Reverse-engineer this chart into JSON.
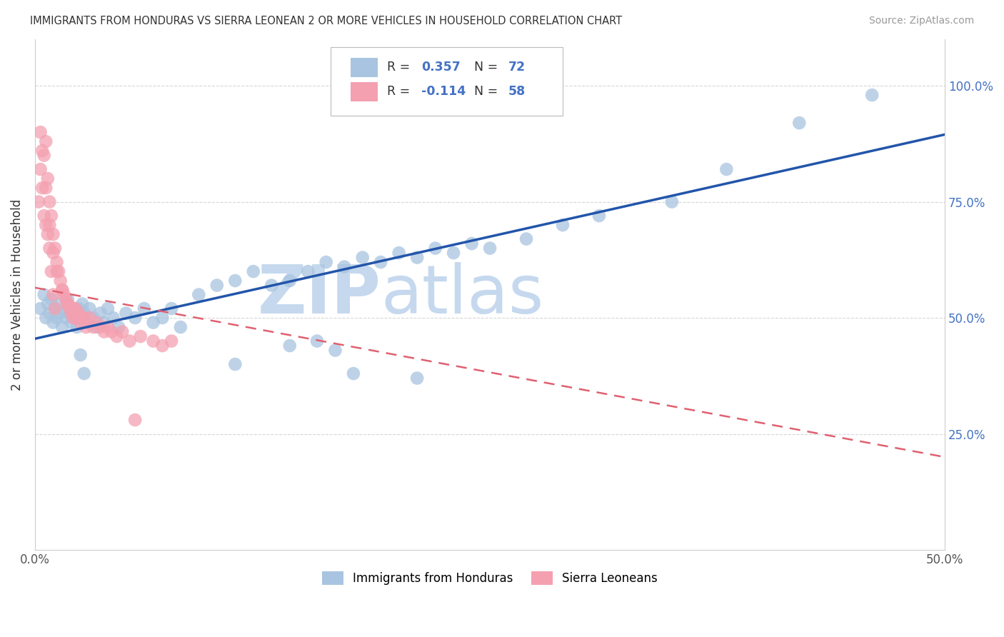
{
  "title": "IMMIGRANTS FROM HONDURAS VS SIERRA LEONEAN 2 OR MORE VEHICLES IN HOUSEHOLD CORRELATION CHART",
  "source": "Source: ZipAtlas.com",
  "ylabel": "2 or more Vehicles in Household",
  "legend_label1": "Immigrants from Honduras",
  "legend_label2": "Sierra Leoneans",
  "r1": 0.357,
  "n1": 72,
  "r2": -0.114,
  "n2": 58,
  "color1": "#a8c4e0",
  "color2": "#f4a0b0",
  "trendline1_color": "#2255aa",
  "trendline2_color": "#e06070",
  "xlim": [
    0.0,
    0.5
  ],
  "ylim": [
    0.0,
    1.1
  ],
  "ytick_labels_right": [
    "25.0%",
    "50.0%",
    "75.0%",
    "100.0%"
  ],
  "yticks_right": [
    0.25,
    0.5,
    0.75,
    1.0
  ],
  "watermark": "ZIPatlas",
  "watermark_color": "#c5d8ee",
  "background_color": "#ffffff",
  "blue_x": [
    0.003,
    0.005,
    0.006,
    0.007,
    0.008,
    0.009,
    0.01,
    0.011,
    0.012,
    0.013,
    0.014,
    0.015,
    0.016,
    0.017,
    0.018,
    0.019,
    0.02,
    0.021,
    0.022,
    0.023,
    0.024,
    0.025,
    0.026,
    0.027,
    0.028,
    0.03,
    0.032,
    0.034,
    0.036,
    0.038,
    0.04,
    0.043,
    0.046,
    0.05,
    0.055,
    0.06,
    0.065,
    0.07,
    0.075,
    0.08,
    0.09,
    0.1,
    0.11,
    0.12,
    0.13,
    0.14,
    0.15,
    0.16,
    0.17,
    0.18,
    0.19,
    0.2,
    0.21,
    0.22,
    0.23,
    0.24,
    0.25,
    0.27,
    0.29,
    0.31,
    0.025,
    0.027,
    0.11,
    0.14,
    0.155,
    0.165,
    0.175,
    0.21,
    0.35,
    0.38,
    0.42,
    0.46
  ],
  "blue_y": [
    0.52,
    0.55,
    0.5,
    0.53,
    0.51,
    0.54,
    0.49,
    0.52,
    0.5,
    0.53,
    0.51,
    0.48,
    0.52,
    0.5,
    0.54,
    0.51,
    0.49,
    0.52,
    0.5,
    0.48,
    0.52,
    0.5,
    0.53,
    0.51,
    0.49,
    0.52,
    0.5,
    0.48,
    0.51,
    0.49,
    0.52,
    0.5,
    0.48,
    0.51,
    0.5,
    0.52,
    0.49,
    0.5,
    0.52,
    0.48,
    0.55,
    0.57,
    0.58,
    0.6,
    0.57,
    0.58,
    0.6,
    0.62,
    0.61,
    0.63,
    0.62,
    0.64,
    0.63,
    0.65,
    0.64,
    0.66,
    0.65,
    0.67,
    0.7,
    0.72,
    0.42,
    0.38,
    0.4,
    0.44,
    0.45,
    0.43,
    0.38,
    0.37,
    0.75,
    0.82,
    0.92,
    0.98
  ],
  "pink_x": [
    0.002,
    0.003,
    0.004,
    0.005,
    0.005,
    0.006,
    0.006,
    0.007,
    0.007,
    0.008,
    0.008,
    0.009,
    0.009,
    0.01,
    0.01,
    0.011,
    0.011,
    0.012,
    0.013,
    0.014,
    0.015,
    0.016,
    0.017,
    0.018,
    0.019,
    0.02,
    0.021,
    0.022,
    0.023,
    0.024,
    0.025,
    0.026,
    0.028,
    0.03,
    0.032,
    0.034,
    0.036,
    0.038,
    0.04,
    0.042,
    0.045,
    0.048,
    0.052,
    0.058,
    0.065,
    0.07,
    0.075,
    0.003,
    0.004,
    0.006,
    0.008,
    0.01,
    0.012,
    0.015,
    0.018,
    0.022,
    0.027,
    0.055
  ],
  "pink_y": [
    0.75,
    0.82,
    0.78,
    0.72,
    0.85,
    0.7,
    0.88,
    0.68,
    0.8,
    0.75,
    0.65,
    0.72,
    0.6,
    0.68,
    0.55,
    0.65,
    0.52,
    0.62,
    0.6,
    0.58,
    0.56,
    0.55,
    0.54,
    0.53,
    0.52,
    0.51,
    0.5,
    0.52,
    0.5,
    0.51,
    0.49,
    0.5,
    0.48,
    0.5,
    0.48,
    0.49,
    0.48,
    0.47,
    0.48,
    0.47,
    0.46,
    0.47,
    0.45,
    0.46,
    0.45,
    0.44,
    0.45,
    0.9,
    0.86,
    0.78,
    0.7,
    0.64,
    0.6,
    0.56,
    0.53,
    0.52,
    0.5,
    0.28
  ]
}
